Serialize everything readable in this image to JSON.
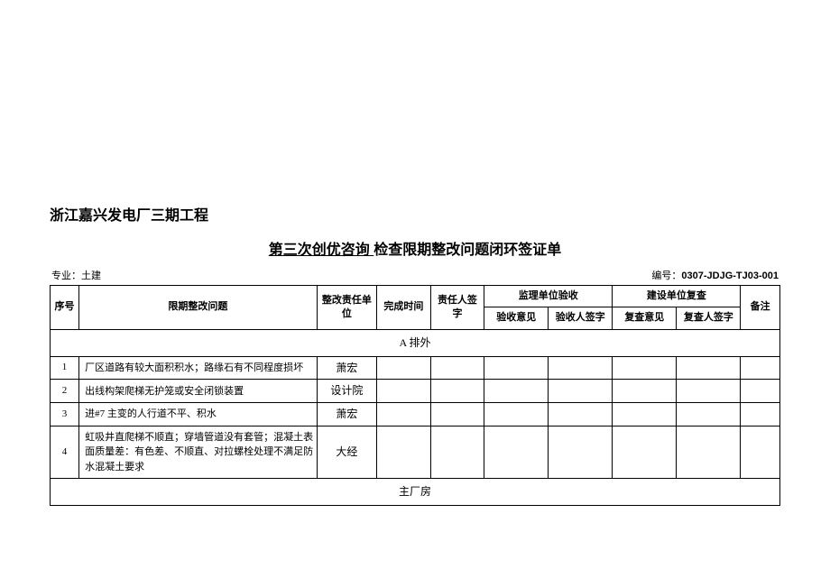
{
  "project_title": "浙江嘉兴发电厂三期工程",
  "form_title_underlined": " 第三次创优咨询 ",
  "form_title_rest": "检查限期整改问题闭环签证单",
  "meta": {
    "specialty_label": "专业：土建",
    "code_label": "编号：",
    "code_value": "0307-JDJG-TJ03-001"
  },
  "headers": {
    "seq": "序号",
    "issue": "限期整改问题",
    "resp_unit": "整改责任单位",
    "complete_time": "完成时间",
    "resp_sign": "责任人签字",
    "supervision": "监理单位验收",
    "supervision_opinion": "验收意见",
    "supervision_sign": "验收人签字",
    "construction": "建设单位复查",
    "construction_opinion": "复查意见",
    "construction_sign": "复查人签字",
    "remark": "备注"
  },
  "sections": {
    "a": "A 排外",
    "main": "主厂房"
  },
  "rows": [
    {
      "seq": "1",
      "issue": "厂区道路有较大面积积水；路缘石有不同程度损坏",
      "unit": "萧宏"
    },
    {
      "seq": "2",
      "issue": "出线构架爬梯无护笼或安全闭锁装置",
      "unit": "设计院"
    },
    {
      "seq": "3",
      "issue": "进#7 主变的人行道不平、积水",
      "unit": "萧宏"
    },
    {
      "seq": "4",
      "issue": "虹吸井直爬梯不顺直；穿墙管道没有套管；混凝土表面质量差：有色差、不顺直、对拉螺栓处理不满足防水混凝土要求",
      "unit": "大经"
    }
  ],
  "style": {
    "bg": "#ffffff",
    "border_color": "#000000",
    "title_fontsize": 16,
    "cell_fontsize": 11
  }
}
